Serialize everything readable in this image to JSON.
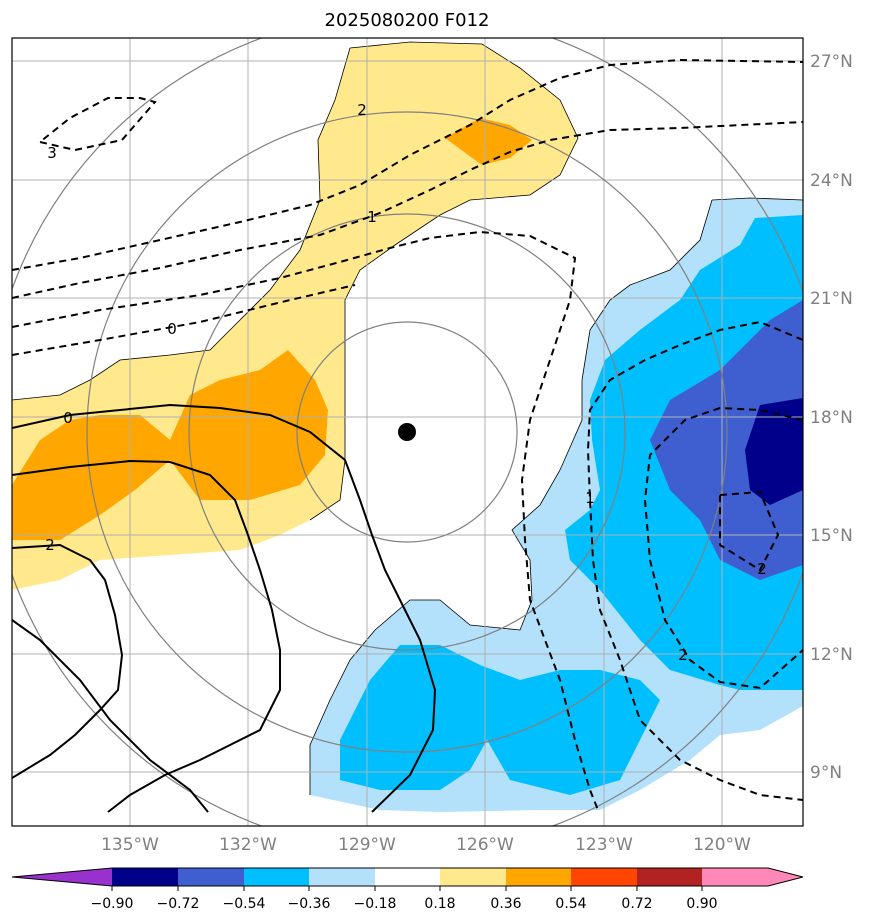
{
  "title": "2025080200 F012",
  "map": {
    "lat_labels": [
      "27°N",
      "24°N",
      "21°N",
      "18°N",
      "15°N",
      "12°N",
      "9°N"
    ],
    "lon_labels": [
      "135°W",
      "132°W",
      "129°W",
      "126°W",
      "123°W",
      "120°W"
    ],
    "storm_center": {
      "lat": 17.6,
      "lon": -128.0
    },
    "range_rings_deg": [
      2,
      4,
      6,
      8,
      10
    ],
    "fill_colors": {
      "pos_0_18_0_36": "#FFE98C",
      "pos_0_36_0_54": "#FFA600",
      "neg_0_36_0_18": "#B3E0FA",
      "neg_0_54_0_36": "#00BFFF",
      "neg_0_72_0_54": "#3F5FD0",
      "neg_0_90_0_72": "#00008B"
    },
    "contour_labels_dashed": [
      "2",
      "1",
      "0",
      "3",
      "1",
      "2",
      "2"
    ],
    "contour_labels_solid": [
      "0",
      "2"
    ]
  },
  "colorbar": {
    "ticks": [
      "−0.90",
      "−0.72",
      "−0.54",
      "−0.36",
      "−0.18",
      "0.18",
      "0.36",
      "0.54",
      "0.72",
      "0.90"
    ],
    "colors": [
      "#9932CC",
      "#00008B",
      "#3F5FD0",
      "#00BFFF",
      "#B3E0FA",
      "#FFFFFF",
      "#FFE98C",
      "#FFA600",
      "#FF4500",
      "#B22222",
      "#FF88B8"
    ]
  }
}
